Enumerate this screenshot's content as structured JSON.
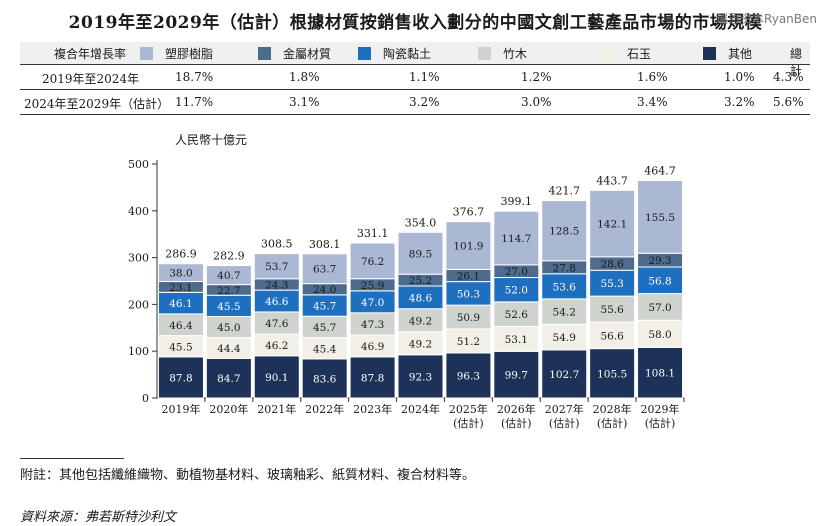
{
  "title": "2019年至2029年（估計）根據材質按銷售收入劃分的中國文創工藝產品市場的市場規模",
  "watermark": "瑞恩资本RyanBen",
  "legend": {
    "header": "複合年增長率",
    "total_label": "總計",
    "items": [
      {
        "name": "塑膠樹脂",
        "color": "#aab8d4"
      },
      {
        "name": "金屬材質",
        "color": "#4d6b8c"
      },
      {
        "name": "陶瓷黏土",
        "color": "#1f6fc0"
      },
      {
        "name": "竹木",
        "color": "#cfd3cd"
      },
      {
        "name": "石玉",
        "color": "#f1efe6"
      },
      {
        "name": "其他",
        "color": "#1c3258"
      }
    ]
  },
  "cagr_rows": [
    {
      "period": "2019年至2024年",
      "values": [
        "18.7%",
        "1.8%",
        "1.1%",
        "1.2%",
        "1.6%",
        "1.0%",
        "4.3%"
      ]
    },
    {
      "period": "2024年至2029年（估計）",
      "values": [
        "11.7%",
        "3.1%",
        "3.2%",
        "3.0%",
        "3.4%",
        "3.2%",
        "5.6%"
      ]
    }
  ],
  "chart_data": {
    "type": "bar",
    "stacked": true,
    "ylabel": "人民幣十億元",
    "ylim": [
      0,
      500
    ],
    "yticks": [
      0,
      100,
      200,
      300,
      400,
      500
    ],
    "categories": [
      "2019年",
      "2020年",
      "2021年",
      "2022年",
      "2023年",
      "2024年",
      "2025年\n(估計)",
      "2026年\n(估計)",
      "2027年\n(估計)",
      "2028年\n(估計)",
      "2029年\n(估計)"
    ],
    "totals": [
      "286.9",
      "282.9",
      "308.5",
      "308.1",
      "331.1",
      "354.0",
      "376.7",
      "399.1",
      "421.7",
      "443.7",
      "464.7"
    ],
    "series": [
      {
        "name": "其他",
        "color": "#1c3258",
        "text_color": "#ffffff",
        "values": [
          87.8,
          84.7,
          90.1,
          83.6,
          87.8,
          92.3,
          96.3,
          99.7,
          102.7,
          105.5,
          108.1
        ]
      },
      {
        "name": "石玉",
        "color": "#f1efe6",
        "text_color": "#1a1a1a",
        "values": [
          45.5,
          44.4,
          46.2,
          45.4,
          46.9,
          49.2,
          51.2,
          53.1,
          54.9,
          56.6,
          58.0
        ]
      },
      {
        "name": "竹木",
        "color": "#cfd3cd",
        "text_color": "#1a1a1a",
        "values": [
          46.4,
          45.0,
          47.6,
          45.7,
          47.3,
          49.2,
          50.9,
          52.6,
          54.2,
          55.6,
          57.0
        ]
      },
      {
        "name": "陶瓷黏土",
        "color": "#1f6fc0",
        "text_color": "#ffffff",
        "values": [
          46.1,
          45.5,
          46.6,
          45.7,
          47.0,
          48.6,
          50.3,
          52.0,
          53.6,
          55.3,
          56.8
        ]
      },
      {
        "name": "金屬材質",
        "color": "#4d6b8c",
        "text_color": "#1a1a1a",
        "values": [
          23.1,
          22.7,
          24.3,
          24.0,
          25.9,
          25.2,
          26.1,
          27.0,
          27.8,
          28.6,
          29.3
        ]
      },
      {
        "name": "塑膠樹脂",
        "color": "#aab8d4",
        "text_color": "#1a1a1a",
        "values": [
          38.0,
          40.7,
          53.7,
          63.7,
          76.2,
          89.5,
          101.9,
          114.7,
          128.5,
          142.1,
          155.5
        ]
      }
    ]
  },
  "footnote": "附註：其他包括纖維織物、動植物基材料、玻璃釉彩、紙質材料、複合材料等。",
  "source": "資料來源：弗若斯特沙利文"
}
